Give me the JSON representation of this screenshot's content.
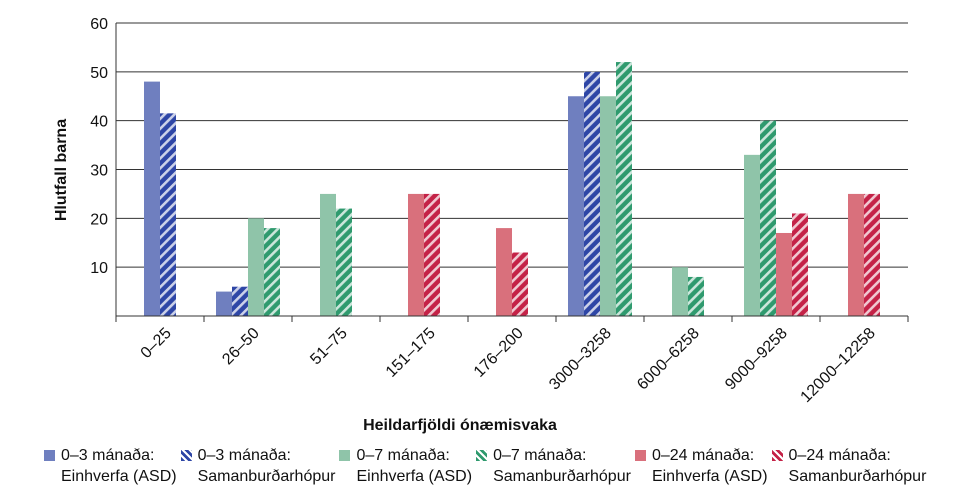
{
  "chart_data": {
    "type": "bar",
    "title": "",
    "xlabel": "Heildarfjöldi ónæmisvaka",
    "ylabel": "Hlutfall barna",
    "ylim": [
      0,
      60
    ],
    "yticks": [
      10,
      20,
      30,
      40,
      50,
      60
    ],
    "grid": true,
    "legend_position": "bottom",
    "categories": [
      "0–25",
      "26–50",
      "51–75",
      "151–175",
      "176–200",
      "3000–3258",
      "6000–6258",
      "9000–9258",
      "12000–12258"
    ],
    "series": [
      {
        "name": "0–3 mánaða: Einhverfa (ASD)",
        "line1": "0–3 mánaða:",
        "line2": "Einhverfa (ASD)",
        "color": "#6f7fbf",
        "hatched": false,
        "values": [
          48,
          5,
          null,
          null,
          null,
          45,
          null,
          null,
          null
        ]
      },
      {
        "name": "0–3 mánaða: Samanburðarhópur",
        "line1": "0–3 mánaða:",
        "line2": "Samanburðarhópur",
        "color": "#2e46a6",
        "hatched": true,
        "values": [
          41.5,
          6,
          null,
          null,
          null,
          50,
          null,
          null,
          null
        ]
      },
      {
        "name": "0–7 mánaða: Einhverfa (ASD)",
        "line1": "0–7 mánaða:",
        "line2": "Einhverfa (ASD)",
        "color": "#8fc4a9",
        "hatched": false,
        "values": [
          null,
          20,
          25,
          null,
          null,
          45,
          10,
          33,
          null
        ]
      },
      {
        "name": "0–7 mánaða: Samanburðarhópur",
        "line1": "0–7 mánaða:",
        "line2": "Samanburðarhópur",
        "color": "#2f9a6e",
        "hatched": true,
        "values": [
          null,
          18,
          22,
          null,
          null,
          52,
          8,
          40,
          null
        ]
      },
      {
        "name": "0–24 mánaða: Einhverfa (ASD)",
        "line1": "0–24 mánaða:",
        "line2": "Einhverfa (ASD)",
        "color": "#d9707c",
        "hatched": false,
        "values": [
          null,
          null,
          null,
          25,
          18,
          null,
          null,
          17,
          25
        ]
      },
      {
        "name": "0–24 mánaða: Samanburðarhópur",
        "line1": "0–24 mánaða:",
        "line2": "Samanburðarhópur",
        "color": "#c42247",
        "hatched": true,
        "values": [
          null,
          null,
          null,
          25,
          13,
          null,
          null,
          21,
          25
        ]
      }
    ]
  }
}
